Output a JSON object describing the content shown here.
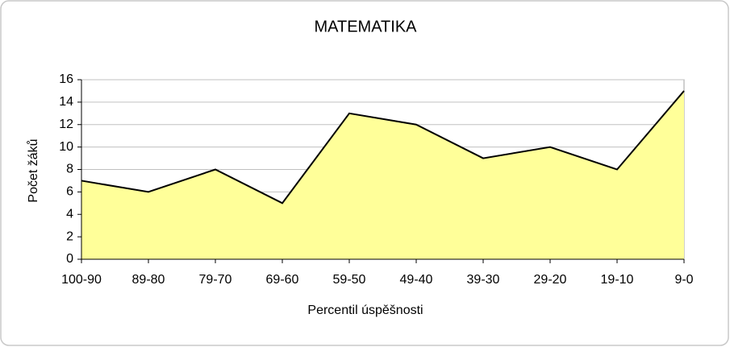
{
  "chart_data": {
    "type": "area",
    "title": "MATEMATIKA",
    "x_label": "Percentil úspěšnosti",
    "y_label": "Počet žáků",
    "categories": [
      "100-90",
      "89-80",
      "79-70",
      "69-60",
      "59-50",
      "49-40",
      "39-30",
      "29-20",
      "19-10",
      "9-0"
    ],
    "values": [
      7,
      6,
      8,
      5,
      13,
      12,
      9,
      10,
      8,
      15
    ],
    "color": "#ffff99",
    "line_color": "#000000",
    "ylim": [
      0,
      16
    ],
    "yticks": [
      0,
      2,
      4,
      6,
      8,
      10,
      12,
      14,
      16
    ],
    "grid": true
  }
}
